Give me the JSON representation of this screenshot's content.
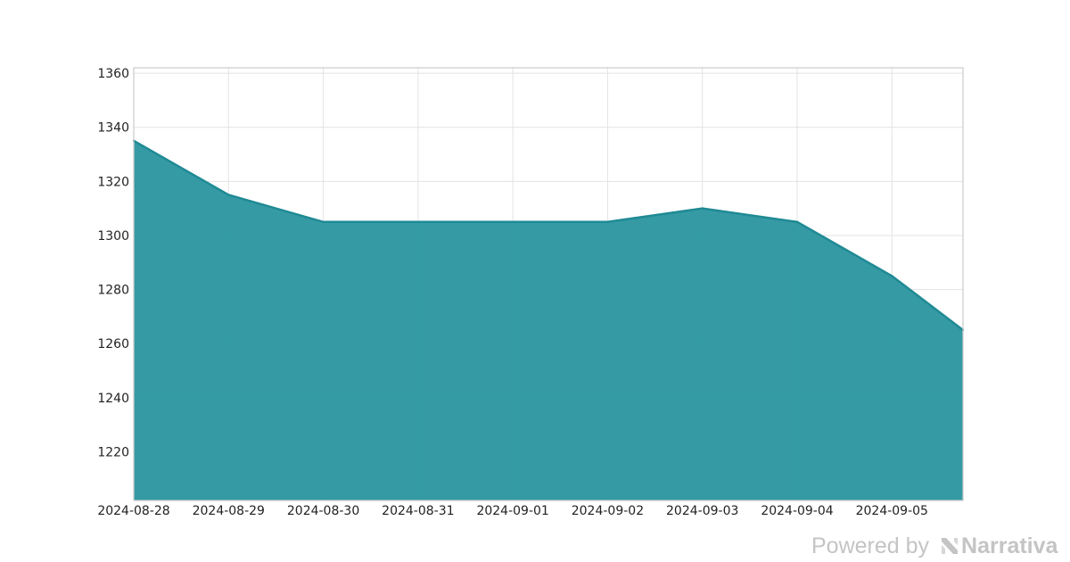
{
  "chart_data": {
    "type": "area",
    "title": "",
    "xlabel": "",
    "ylabel": "",
    "x": [
      "2024-08-28",
      "2024-08-29",
      "2024-08-30",
      "2024-08-31",
      "2024-09-01",
      "2024-09-02",
      "2024-09-03",
      "2024-09-04",
      "2024-09-05",
      "2024-09-05T18:00"
    ],
    "series": [
      {
        "values": [
          1335,
          1315,
          1305,
          1305,
          1305,
          1305,
          1310,
          1305,
          1285,
          1265
        ]
      }
    ],
    "x_ticks": [
      "2024-08-28",
      "2024-08-29",
      "2024-08-30",
      "2024-08-31",
      "2024-09-01",
      "2024-09-02",
      "2024-09-03",
      "2024-09-04",
      "2024-09-05"
    ],
    "y_ticks": [
      1220,
      1240,
      1260,
      1280,
      1300,
      1320,
      1340,
      1360
    ],
    "ylim": [
      1202,
      1362
    ],
    "grid": true,
    "colors": {
      "fill": "#2a959f",
      "line": "#1f8a94",
      "grid": "#e3e3e3",
      "frame": "#cccccc"
    }
  },
  "branding": {
    "prefix": "Powered by",
    "name": "Narrativa",
    "logo_icon": "narrativa-logo-icon"
  }
}
